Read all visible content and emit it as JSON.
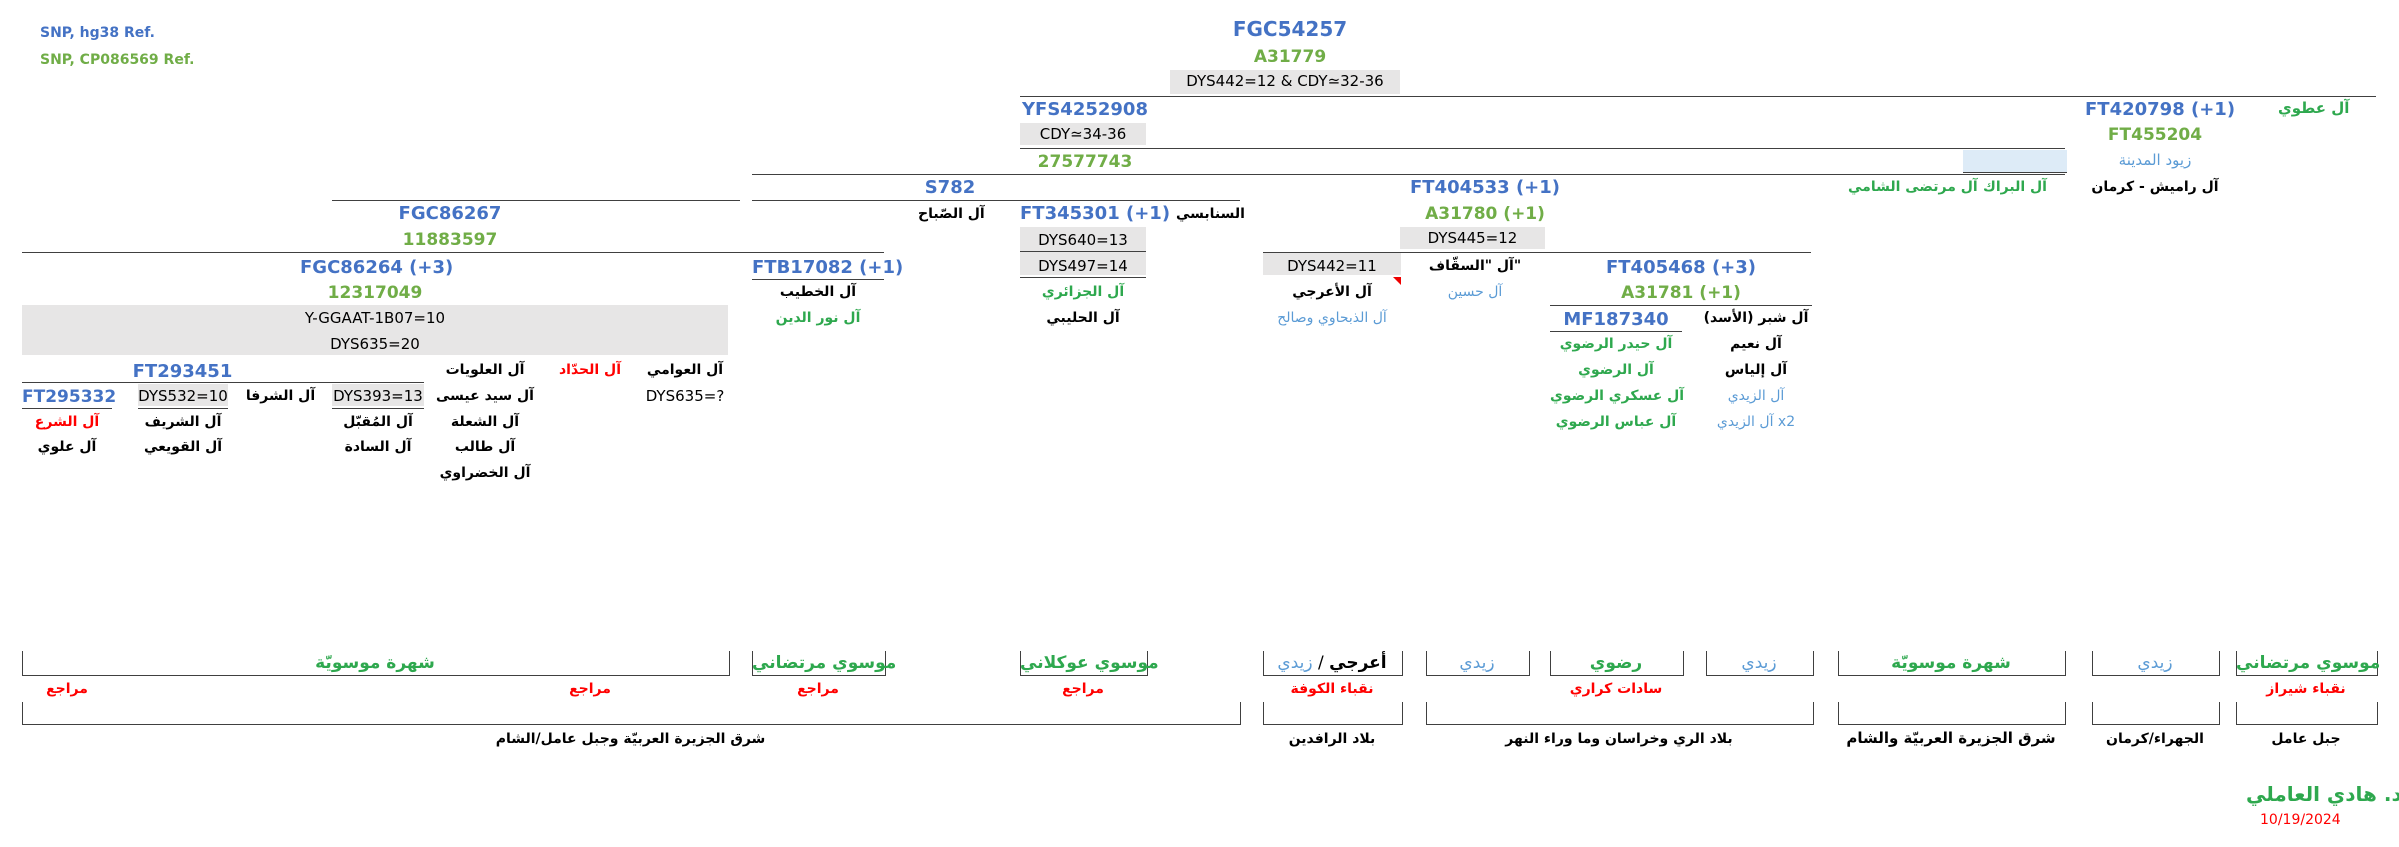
{
  "legend": {
    "hg38": "SNP, hg38 Ref.",
    "cp": "SNP, CP086569 Ref.",
    "hg38_color": "#4472C4",
    "cp_color": "#70AD47"
  },
  "top": {
    "name": "FGC54257",
    "cp": "A31779",
    "str": "DYS442=12 & CDY≃32-36"
  },
  "branch_ft420798": {
    "name": "FT420798 (+1)",
    "cp": "FT455204",
    "family": "آل عطوي",
    "zuyud": "زيود المدينة",
    "ramish": "آل راميش - كرمان",
    "barrak": "آل البراك",
    "murtada_shami": "آل مرتضى الشامي"
  },
  "branch_yfs": {
    "name": "YFS4252908",
    "str": "CDY≃34-36",
    "cp": "27577743"
  },
  "branch_s782": {
    "name": "S782"
  },
  "branch_ft404533": {
    "name": "FT404533 (+1)",
    "cp": "A31780 (+1)",
    "str": "DYS445=12"
  },
  "branch_fgc86267": {
    "name": "FGC86267",
    "cp": "11883597"
  },
  "sanabsi": "السنابسي",
  "sabah": "آل الصّباح",
  "branch_ft345301": {
    "name": "FT345301 (+1)",
    "str1": "DYS640=13",
    "str2": "DYS497=14",
    "f1": "آل الجزائري",
    "f2": "آل الحليبي"
  },
  "branch_ftb17082": {
    "name": "FTB17082 (+1)",
    "f1": "آل الخطيب",
    "f2": "آل نور الدين"
  },
  "branch_fgc86264": {
    "name": "FGC86264 (+3)",
    "cp": "12317049",
    "str1": "Y-GGAAT-1B07=10",
    "str2": "DYS635=20"
  },
  "araji": {
    "str": "DYS442=11",
    "f1": "آل الأعرجي",
    "f2": "آل الذبحاوي وصالح"
  },
  "saqqaf": {
    "f1": "آل \"السقّاف\"",
    "f2": "آل حسين"
  },
  "branch_ft405468": {
    "name": "FT405468 (+3)",
    "cp": "A31781 (+1)"
  },
  "branch_mf187340": {
    "name": "MF187340",
    "families": [
      "آل حيدر الرضوي",
      "آل الرضوي",
      "آل عسكري الرضوي",
      "آل عباس الرضوي"
    ]
  },
  "shibr": {
    "title": "آل شبر (الأسد)",
    "families": [
      "آل نعيم",
      "آل إلياس",
      "آل الزيدي",
      "آل الزيدي x2"
    ]
  },
  "branch_ft293451": {
    "name": "FT293451"
  },
  "ft295332": {
    "name": "FT295332",
    "f1": "آل الشرع",
    "f2": "آل علوي"
  },
  "dys532": {
    "str": "DYS532=10",
    "f1": "آل الشريف",
    "f2": "آل القويعي"
  },
  "sharfa": "آل الشرفا",
  "dys393": {
    "str": "DYS393=13",
    "f1": "آل المُقبّل",
    "f2": "آل السادة"
  },
  "alawiyat": {
    "title": "آل العلويات",
    "families": [
      "آل سيد عيسى",
      "آل الشعلة",
      "آل طالب",
      "آل الخضراوي"
    ]
  },
  "haddad": "آل الحدّاد",
  "awwami": {
    "title": "آل العوامي",
    "str": "DYS635=?"
  },
  "groups": {
    "shuhra1": "شهرة موسويّة",
    "murtadani1": "موسوي مرتضاني",
    "awkalani": "موسوي عوكلاني",
    "zaidi_a": "زيدي",
    "slash": "/",
    "aaraji": "أعرجي",
    "zaidi2": "زيدي",
    "radawi": "رضوي",
    "zaidi3": "زيدي",
    "shuhra2": "شهرة موسويّة",
    "zaidi4": "زيدي",
    "murtadani2": "موسوي مرتضاني"
  },
  "roles": {
    "marajie": "مراجع",
    "nuqaba_kufa": "نقباء الكوفة",
    "sadat_karari": "سادات كراري",
    "nuqaba_shiraz": "نقباء شيراز"
  },
  "regions": {
    "r1": "شرق الجزيرة العربيّة وجبل عامل/الشام",
    "r2": "بلاد الرافدين",
    "r3": "بلاد الري وخراسان وما وراء النهر",
    "r4": "شرق الجزيرة العربيّة والشام",
    "r5": "الجهراء/كرمان",
    "r6": "جبل عامل"
  },
  "author": {
    "name": "د. هادي العاملي",
    "date": "10/19/2024"
  }
}
